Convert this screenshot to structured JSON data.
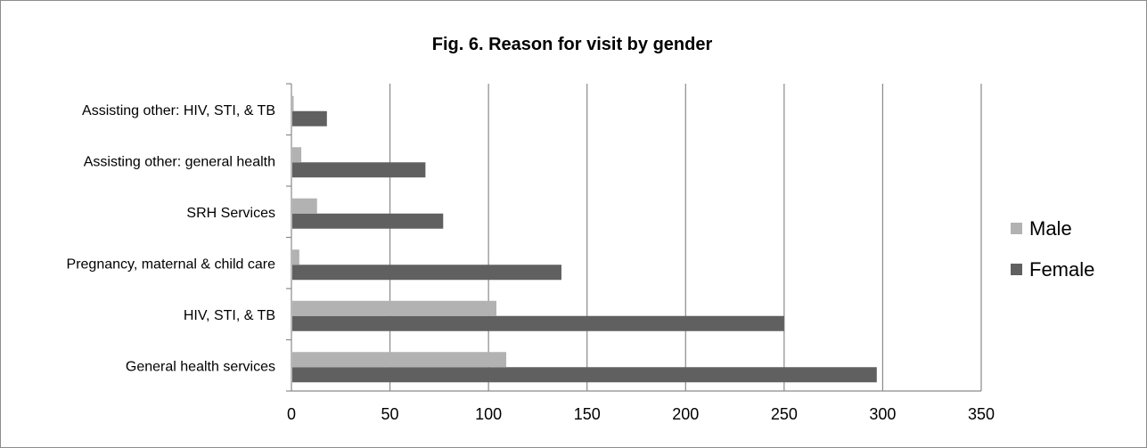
{
  "chart_data": {
    "type": "bar",
    "orientation": "horizontal",
    "title": "Fig. 6. Reason for visit by gender",
    "categories": [
      "General health services",
      "HIV, STI, & TB",
      "Pregnancy, maternal & child care",
      "SRH Services",
      "Assisting other: general health",
      "Assisting other: HIV, STI, & TB"
    ],
    "series": [
      {
        "name": "Male",
        "color": "#b2b2b2",
        "values": [
          109,
          104,
          4,
          13,
          5,
          1
        ]
      },
      {
        "name": "Female",
        "color": "#606060",
        "values": [
          297,
          250,
          137,
          77,
          68,
          18
        ]
      }
    ],
    "xlim": [
      0,
      350
    ],
    "xticks": [
      "0",
      "50",
      "100",
      "150",
      "200",
      "250",
      "300",
      "350"
    ],
    "grid": "vertical",
    "legend": "right"
  }
}
